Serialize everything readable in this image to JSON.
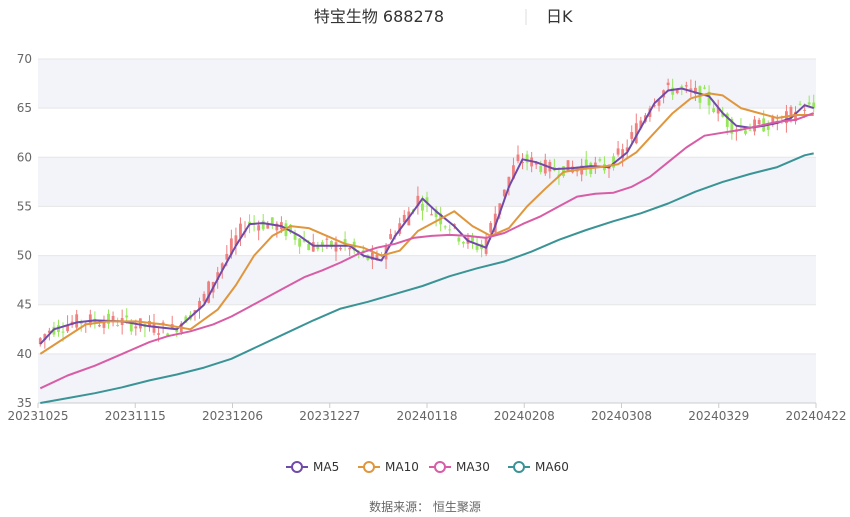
{
  "header": {
    "title": "特宝生物 688278",
    "period": "日K"
  },
  "footer": {
    "source": "数据来源： 恒生聚源"
  },
  "colors": {
    "up": "#f07f7f",
    "down": "#96e65a",
    "MA5": "#6f4aa8",
    "MA10": "#e0963c",
    "MA30": "#d85ca6",
    "MA60": "#3a9496",
    "band": "#f2f4f9",
    "grid": "#e6e6e6"
  },
  "chart_data": {
    "type": "candlestick",
    "ylim": [
      35,
      70
    ],
    "yticks": [
      35,
      40,
      45,
      50,
      55,
      60,
      65,
      70
    ],
    "grid": "horizontal",
    "legend_position": "bottom-center",
    "x_tick_labels": [
      "20231025",
      "20231115",
      "20231206",
      "20231227",
      "20240118",
      "20240208",
      "20240308",
      "20240329",
      "20240422"
    ],
    "series": [
      {
        "name": "MA5",
        "type": "line",
        "points": [
          [
            0,
            41.0
          ],
          [
            3,
            42.5
          ],
          [
            8,
            43.2
          ],
          [
            12,
            43.4
          ],
          [
            18,
            43.3
          ],
          [
            24,
            42.8
          ],
          [
            30,
            42.5
          ],
          [
            36,
            45.0
          ],
          [
            40,
            48.5
          ],
          [
            43,
            51.0
          ],
          [
            46,
            53.2
          ],
          [
            49,
            53.3
          ],
          [
            53,
            53.0
          ],
          [
            57,
            52.0
          ],
          [
            60,
            51.0
          ],
          [
            64,
            51.0
          ],
          [
            68,
            51.0
          ],
          [
            71,
            50.0
          ],
          [
            75,
            49.5
          ],
          [
            78,
            52.0
          ],
          [
            82,
            54.5
          ],
          [
            84,
            55.8
          ],
          [
            87,
            54.5
          ],
          [
            91,
            53.0
          ],
          [
            94,
            51.5
          ],
          [
            98,
            50.8
          ],
          [
            100,
            53.0
          ],
          [
            103,
            57.0
          ],
          [
            106,
            59.8
          ],
          [
            109,
            59.5
          ],
          [
            113,
            58.8
          ],
          [
            117,
            58.9
          ],
          [
            121,
            59.1
          ],
          [
            125,
            59.0
          ],
          [
            129,
            60.5
          ],
          [
            132,
            63.0
          ],
          [
            135,
            65.5
          ],
          [
            138,
            66.8
          ],
          [
            141,
            67.0
          ],
          [
            144,
            66.6
          ],
          [
            147,
            66.2
          ],
          [
            150,
            64.5
          ],
          [
            153,
            63.2
          ],
          [
            156,
            63.0
          ],
          [
            159,
            63.2
          ],
          [
            162,
            63.5
          ],
          [
            165,
            64.0
          ],
          [
            168,
            65.3
          ],
          [
            170,
            65.0
          ]
        ]
      },
      {
        "name": "MA10",
        "type": "line",
        "points": [
          [
            0,
            40.0
          ],
          [
            5,
            41.5
          ],
          [
            10,
            43.0
          ],
          [
            15,
            43.3
          ],
          [
            21,
            43.3
          ],
          [
            27,
            43.0
          ],
          [
            33,
            42.5
          ],
          [
            39,
            44.5
          ],
          [
            43,
            47.0
          ],
          [
            47,
            50.0
          ],
          [
            51,
            52.0
          ],
          [
            55,
            53.0
          ],
          [
            59,
            52.8
          ],
          [
            63,
            52.0
          ],
          [
            67,
            51.2
          ],
          [
            71,
            50.8
          ],
          [
            75,
            50.0
          ],
          [
            79,
            50.5
          ],
          [
            83,
            52.5
          ],
          [
            87,
            53.5
          ],
          [
            91,
            54.5
          ],
          [
            95,
            53.0
          ],
          [
            99,
            52.0
          ],
          [
            103,
            52.8
          ],
          [
            107,
            55.0
          ],
          [
            111,
            56.8
          ],
          [
            115,
            58.5
          ],
          [
            119,
            58.8
          ],
          [
            123,
            59.0
          ],
          [
            127,
            59.3
          ],
          [
            131,
            60.5
          ],
          [
            135,
            62.5
          ],
          [
            139,
            64.5
          ],
          [
            143,
            66.0
          ],
          [
            147,
            66.5
          ],
          [
            150,
            66.3
          ],
          [
            154,
            65.0
          ],
          [
            158,
            64.5
          ],
          [
            162,
            64.0
          ],
          [
            166,
            64.3
          ],
          [
            170,
            64.3
          ]
        ]
      },
      {
        "name": "MA30",
        "type": "line",
        "points": [
          [
            0,
            36.5
          ],
          [
            6,
            37.8
          ],
          [
            12,
            38.8
          ],
          [
            18,
            40.0
          ],
          [
            24,
            41.2
          ],
          [
            28,
            41.8
          ],
          [
            33,
            42.3
          ],
          [
            38,
            43.0
          ],
          [
            42,
            43.8
          ],
          [
            46,
            44.8
          ],
          [
            50,
            45.8
          ],
          [
            54,
            46.8
          ],
          [
            58,
            47.8
          ],
          [
            62,
            48.5
          ],
          [
            66,
            49.3
          ],
          [
            70,
            50.2
          ],
          [
            74,
            50.8
          ],
          [
            78,
            51.2
          ],
          [
            82,
            51.8
          ],
          [
            86,
            52.0
          ],
          [
            90,
            52.1
          ],
          [
            94,
            52.0
          ],
          [
            98,
            51.8
          ],
          [
            102,
            52.3
          ],
          [
            106,
            53.2
          ],
          [
            110,
            54.0
          ],
          [
            114,
            55.0
          ],
          [
            118,
            56.0
          ],
          [
            122,
            56.3
          ],
          [
            126,
            56.4
          ],
          [
            130,
            57.0
          ],
          [
            134,
            58.0
          ],
          [
            138,
            59.5
          ],
          [
            142,
            61.0
          ],
          [
            146,
            62.2
          ],
          [
            150,
            62.5
          ],
          [
            154,
            62.8
          ],
          [
            158,
            63.2
          ],
          [
            162,
            63.6
          ],
          [
            166,
            63.8
          ],
          [
            170,
            64.5
          ]
        ]
      },
      {
        "name": "MA60",
        "type": "line",
        "points": [
          [
            0,
            35.0
          ],
          [
            6,
            35.5
          ],
          [
            12,
            36.0
          ],
          [
            18,
            36.6
          ],
          [
            24,
            37.3
          ],
          [
            30,
            37.9
          ],
          [
            36,
            38.6
          ],
          [
            42,
            39.5
          ],
          [
            48,
            40.8
          ],
          [
            54,
            42.1
          ],
          [
            60,
            43.4
          ],
          [
            66,
            44.6
          ],
          [
            72,
            45.3
          ],
          [
            78,
            46.1
          ],
          [
            84,
            46.9
          ],
          [
            90,
            47.9
          ],
          [
            96,
            48.7
          ],
          [
            102,
            49.4
          ],
          [
            108,
            50.4
          ],
          [
            114,
            51.6
          ],
          [
            120,
            52.6
          ],
          [
            126,
            53.5
          ],
          [
            132,
            54.3
          ],
          [
            138,
            55.3
          ],
          [
            144,
            56.5
          ],
          [
            150,
            57.5
          ],
          [
            156,
            58.3
          ],
          [
            162,
            59.0
          ],
          [
            168,
            60.2
          ],
          [
            170,
            60.4
          ]
        ]
      }
    ]
  }
}
